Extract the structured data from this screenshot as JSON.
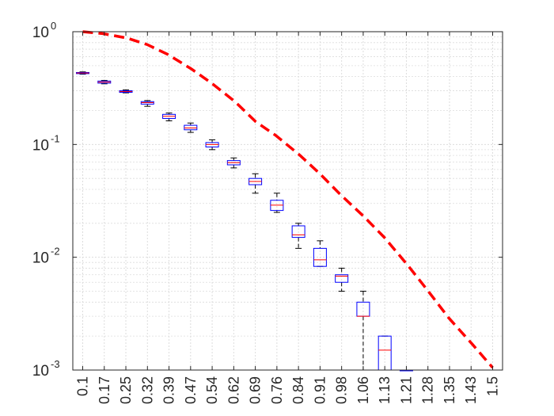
{
  "chart_data": {
    "type": "box",
    "title": "",
    "xlabel": "",
    "ylabel": "",
    "yscale": "log",
    "ylim": [
      0.001,
      1
    ],
    "grid": true,
    "minor_grid": true,
    "legend": "none",
    "categories": [
      "0.1",
      "0.17",
      "0.25",
      "0.32",
      "0.39",
      "0.47",
      "0.54",
      "0.62",
      "0.69",
      "0.76",
      "0.84",
      "0.91",
      "0.98",
      "1.06",
      "1.13",
      "1.21",
      "1.28",
      "1.35",
      "1.43",
      "1.5"
    ],
    "x_values": [
      0.1,
      0.17,
      0.25,
      0.32,
      0.39,
      0.47,
      0.54,
      0.62,
      0.69,
      0.76,
      0.84,
      0.91,
      0.98,
      1.06,
      1.13,
      1.21,
      1.28,
      1.35,
      1.43,
      1.5
    ],
    "y_ticks": [
      {
        "value": 1,
        "base": "10",
        "exp": "0"
      },
      {
        "value": 0.1,
        "base": "10",
        "exp": "-1"
      },
      {
        "value": 0.01,
        "base": "10",
        "exp": "-2"
      },
      {
        "value": 0.001,
        "base": "10",
        "exp": "-3"
      }
    ],
    "boxes": [
      {
        "x": "0.1",
        "q1": 0.425,
        "median": 0.43,
        "q3": 0.435,
        "min": 0.42,
        "max": 0.44
      },
      {
        "x": "0.17",
        "q1": 0.35,
        "median": 0.357,
        "q3": 0.365,
        "min": 0.345,
        "max": 0.37
      },
      {
        "x": "0.25",
        "q1": 0.29,
        "median": 0.295,
        "q3": 0.3,
        "min": 0.287,
        "max": 0.305
      },
      {
        "x": "0.32",
        "q1": 0.228,
        "median": 0.235,
        "q3": 0.24,
        "min": 0.218,
        "max": 0.245
      },
      {
        "x": "0.39",
        "q1": 0.17,
        "median": 0.178,
        "q3": 0.185,
        "min": 0.162,
        "max": 0.19
      },
      {
        "x": "0.47",
        "q1": 0.135,
        "median": 0.14,
        "q3": 0.148,
        "min": 0.128,
        "max": 0.155
      },
      {
        "x": "0.54",
        "q1": 0.095,
        "median": 0.1,
        "q3": 0.104,
        "min": 0.09,
        "max": 0.11
      },
      {
        "x": "0.62",
        "q1": 0.066,
        "median": 0.069,
        "q3": 0.072,
        "min": 0.062,
        "max": 0.076
      },
      {
        "x": "0.69",
        "q1": 0.044,
        "median": 0.047,
        "q3": 0.05,
        "min": 0.037,
        "max": 0.055
      },
      {
        "x": "0.76",
        "q1": 0.026,
        "median": 0.029,
        "q3": 0.032,
        "min": 0.025,
        "max": 0.037
      },
      {
        "x": "0.84",
        "q1": 0.015,
        "median": 0.0158,
        "q3": 0.019,
        "min": 0.012,
        "max": 0.02
      },
      {
        "x": "0.91",
        "q1": 0.0083,
        "median": 0.0095,
        "q3": 0.012,
        "min": 0.0083,
        "max": 0.014
      },
      {
        "x": "0.98",
        "q1": 0.006,
        "median": 0.0068,
        "q3": 0.007,
        "min": 0.005,
        "max": 0.008
      },
      {
        "x": "1.06",
        "q1": 0.003,
        "median": 0.003,
        "q3": 0.004,
        "min": 0.001,
        "max": 0.005
      },
      {
        "x": "1.13",
        "q1": 0.001,
        "median": 0.0015,
        "q3": 0.002,
        "min": 0.001,
        "max": 0.002
      },
      {
        "x": "1.21",
        "q1": 0.001,
        "median": 0.001,
        "q3": 0.001,
        "min": 0.001,
        "max": 0.001
      }
    ],
    "curve": {
      "style": "dashed",
      "color": "#ff0000",
      "x": [
        0.1,
        0.17,
        0.25,
        0.32,
        0.39,
        0.47,
        0.54,
        0.62,
        0.69,
        0.76,
        0.84,
        0.91,
        0.98,
        1.06,
        1.13,
        1.21,
        1.28,
        1.35,
        1.43,
        1.5
      ],
      "y": [
        1.0,
        0.96,
        0.88,
        0.77,
        0.63,
        0.47,
        0.35,
        0.24,
        0.16,
        0.12,
        0.081,
        0.055,
        0.036,
        0.023,
        0.015,
        0.0085,
        0.005,
        0.0029,
        0.0017,
        0.00105
      ]
    },
    "colors": {
      "box": "#0000ff",
      "median": "#ff0000",
      "whisker": "#000000",
      "grid": "#dcdcdc",
      "axis": "#262626"
    }
  }
}
